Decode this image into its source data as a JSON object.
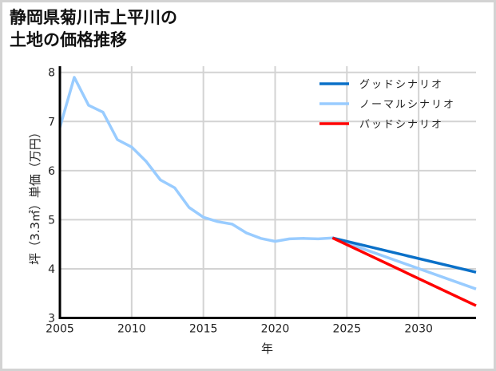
{
  "title": {
    "line1": "静岡県菊川市上平川の",
    "line2": "土地の価格推移"
  },
  "colors": {
    "good": "#0a70c8",
    "normal": "#99ccff",
    "bad": "#ff0000",
    "grid": "#d3d3d3",
    "axis": "#000000"
  },
  "chart_data": {
    "type": "line",
    "title": "静岡県菊川市上平川の土地の価格推移",
    "xlabel": "年",
    "ylabel": "坪（3.3㎡）単価（万円）",
    "xlim": [
      2005,
      2034
    ],
    "ylim": [
      3,
      8
    ],
    "xticks": [
      2005,
      2010,
      2015,
      2020,
      2025,
      2030
    ],
    "yticks": [
      3,
      4,
      5,
      6,
      7,
      8
    ],
    "grid": true,
    "legend_position": "upper right",
    "series": [
      {
        "name": "グッドシナリオ",
        "key": "good",
        "x": [
          2024,
          2034
        ],
        "values": [
          4.63,
          3.93
        ]
      },
      {
        "name": "ノーマルシナリオ",
        "key": "normal",
        "x": [
          2005,
          2006,
          2007,
          2008,
          2009,
          2010,
          2011,
          2012,
          2013,
          2014,
          2015,
          2016,
          2017,
          2018,
          2019,
          2020,
          2021,
          2022,
          2023,
          2024,
          2034
        ],
        "values": [
          6.88,
          7.9,
          7.33,
          7.19,
          6.63,
          6.48,
          6.19,
          5.81,
          5.65,
          5.25,
          5.05,
          4.96,
          4.91,
          4.73,
          4.62,
          4.56,
          4.61,
          4.62,
          4.61,
          4.63,
          3.59
        ]
      },
      {
        "name": "バッドシナリオ",
        "key": "bad",
        "x": [
          2024,
          2034
        ],
        "values": [
          4.63,
          3.25
        ]
      }
    ]
  }
}
